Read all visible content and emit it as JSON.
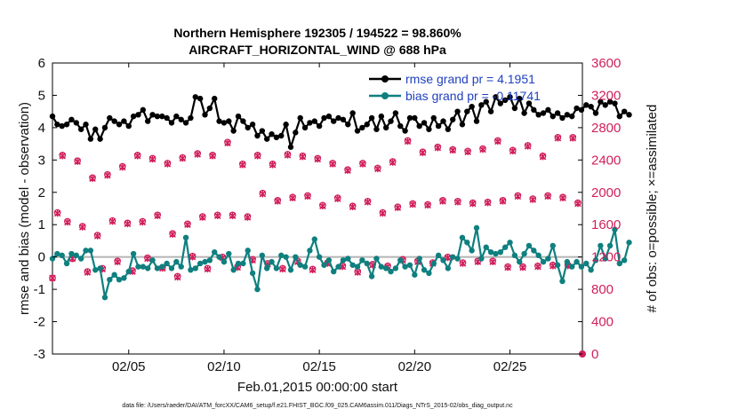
{
  "chart_data": {
    "type": "line",
    "title": "Northern Hemisphere 192305 / 194522 = 98.860%",
    "subtitle": "AIRCRAFT_HORIZONTAL_WIND @ 688 hPa",
    "xlabel": "Feb.01,2015 00:00:00 start",
    "ylabel": "rmse and bias (model - observation)",
    "y2label": "# of obs: o=possible; ×=assimilated",
    "footnote": "data file: /Users/raeder/DAI/ATM_forcXX/CAM6_setup/f.e21.FHIST_BGC.f09_025.CAM6assim.011/Diags_NTrS_2015-02/obs_diag_output.nc",
    "xlim": [
      1,
      28.8
    ],
    "ylim": [
      -3,
      6
    ],
    "y2lim": [
      0,
      3600
    ],
    "xticks": [
      5,
      10,
      15,
      20,
      25
    ],
    "xtick_labels": [
      "02/05",
      "02/10",
      "02/15",
      "02/20",
      "02/25"
    ],
    "yticks": [
      -3,
      -2,
      -1,
      0,
      1,
      2,
      3,
      4,
      5,
      6
    ],
    "y2ticks": [
      0,
      400,
      800,
      1200,
      1600,
      2000,
      2400,
      2800,
      3200,
      3600
    ],
    "x_start": 1.0,
    "x_step": 0.25,
    "series": [
      {
        "name": "rmse",
        "legend": "rmse grand pr = 4.1951",
        "color": "#000000",
        "values": [
          4.35,
          4.1,
          4.05,
          4.1,
          4.25,
          4.15,
          3.95,
          4.1,
          3.65,
          3.95,
          3.65,
          4.0,
          4.3,
          4.2,
          4.1,
          4.2,
          4.05,
          4.35,
          4.4,
          4.55,
          4.2,
          4.4,
          4.35,
          4.35,
          4.3,
          4.15,
          4.35,
          4.25,
          4.15,
          4.3,
          4.95,
          4.9,
          4.4,
          4.6,
          4.9,
          4.2,
          4.15,
          4.2,
          3.9,
          4.35,
          4.2,
          4.0,
          4.1,
          3.75,
          3.9,
          3.65,
          3.8,
          3.7,
          3.75,
          4.1,
          3.4,
          3.85,
          4.3,
          4.0,
          4.15,
          4.2,
          4.05,
          4.3,
          4.35,
          4.2,
          4.3,
          4.25,
          4.1,
          4.45,
          3.9,
          4.0,
          4.1,
          4.3,
          3.95,
          4.35,
          4.0,
          4.2,
          4.45,
          4.05,
          3.9,
          4.3,
          4.3,
          4.05,
          4.15,
          3.95,
          4.3,
          4.05,
          4.2,
          3.95,
          4.25,
          4.5,
          4.1,
          4.5,
          4.65,
          4.2,
          4.7,
          4.8,
          4.5,
          4.95,
          4.75,
          4.85,
          4.95,
          4.6,
          4.9,
          4.45,
          4.75,
          4.55,
          4.4,
          4.45,
          4.55,
          4.35,
          4.45,
          4.3,
          4.4,
          4.35,
          4.6,
          4.55,
          4.7,
          4.65,
          4.45,
          4.8,
          4.7,
          4.8,
          4.75,
          4.35,
          4.5,
          4.4
        ]
      },
      {
        "name": "bias",
        "legend": "bias grand pr = -0.11741",
        "color": "#0f7f7f",
        "values": [
          -0.05,
          0.1,
          0.05,
          -0.2,
          0.1,
          0.05,
          -0.05,
          0.2,
          0.2,
          -0.4,
          -0.35,
          -1.25,
          -0.7,
          -0.55,
          -0.7,
          -0.65,
          -0.45,
          0.1,
          -0.3,
          -0.3,
          -0.35,
          -0.1,
          -0.35,
          -0.3,
          -0.2,
          -0.35,
          -0.15,
          -0.3,
          0.6,
          -0.4,
          -0.35,
          -0.2,
          -0.15,
          -0.1,
          0.15,
          0.0,
          -0.15,
          0.1,
          -0.4,
          -0.2,
          -0.2,
          0.2,
          -0.5,
          -1.0,
          0.05,
          -0.35,
          -0.15,
          -0.35,
          0.05,
          0.0,
          -0.4,
          0.0,
          -0.25,
          -0.3,
          0.2,
          0.55,
          0.0,
          -0.25,
          -0.1,
          -0.45,
          -0.3,
          -0.1,
          -0.05,
          -0.25,
          -0.3,
          -0.1,
          -0.2,
          -0.6,
          -0.05,
          -0.3,
          -0.35,
          -0.45,
          -0.35,
          -0.1,
          -0.3,
          -0.25,
          -0.55,
          -0.05,
          -0.4,
          -0.5,
          -0.2,
          0.05,
          -0.1,
          -0.35,
          0.0,
          -0.05,
          0.6,
          0.45,
          0.2,
          0.9,
          -0.05,
          0.3,
          0.15,
          0.1,
          0.15,
          0.3,
          0.45,
          0.05,
          -0.15,
          0.1,
          0.35,
          0.2,
          0.05,
          -0.15,
          -0.05,
          0.35,
          -0.25,
          -0.75,
          -0.15,
          -0.3,
          -0.15,
          -0.3,
          -0.2,
          -0.4,
          -0.1,
          0.35,
          -0.05,
          0.35,
          0.85,
          -0.2,
          -0.1,
          0.45
        ]
      },
      {
        "name": "obs_possible",
        "color": "#d01f5c",
        "axis": "right",
        "values": [
          940,
          1750,
          2460,
          1640,
          1180,
          2390,
          1580,
          1020,
          2180,
          1470,
          1060,
          2220,
          1650,
          1150,
          2320,
          1620,
          1030,
          2460,
          1640,
          1190,
          2420,
          1720,
          1070,
          2360,
          1490,
          960,
          2430,
          1610,
          1210,
          2480,
          1700,
          1060,
          2460,
          1720,
          1200,
          2620,
          1720,
          1080,
          2350,
          1700,
          1170,
          2460,
          1990,
          1120,
          2350,
          1900,
          1060,
          2470,
          1940,
          1150,
          2450,
          1960,
          1050,
          2420,
          1840,
          1130,
          2360,
          1930,
          1090,
          2280,
          1830,
          1020,
          2360,
          1890,
          1110,
          2300,
          1750,
          1090,
          2380,
          1820,
          1170,
          2640,
          1860,
          1150,
          2500,
          1850,
          1130,
          2560,
          1900,
          1200,
          2530,
          1890,
          1130,
          2510,
          1870,
          1150,
          2540,
          1880,
          1150,
          2640,
          1900,
          1080,
          2520,
          1960,
          1080,
          2580,
          1920,
          1090,
          2450,
          1960,
          1100,
          2680,
          1940,
          1100,
          2680,
          1870
        ]
      },
      {
        "name": "obs_assimilated",
        "color": "#d01f5c",
        "axis": "right",
        "values": [
          940,
          1740,
          2450,
          1630,
          1180,
          2380,
          1570,
          1010,
          2170,
          1460,
          1050,
          2210,
          1640,
          1140,
          2310,
          1610,
          1020,
          2450,
          1630,
          1180,
          2410,
          1710,
          1060,
          2350,
          1480,
          950,
          2420,
          1600,
          1200,
          2470,
          1690,
          1050,
          2450,
          1710,
          1190,
          2610,
          1710,
          1070,
          2340,
          1690,
          1160,
          2450,
          1980,
          1110,
          2340,
          1890,
          1050,
          2460,
          1930,
          1140,
          2440,
          1950,
          1040,
          2410,
          1830,
          1120,
          2350,
          1920,
          1080,
          2270,
          1820,
          1010,
          2350,
          1880,
          1100,
          2290,
          1740,
          1080,
          2370,
          1810,
          1160,
          2630,
          1850,
          1140,
          2490,
          1840,
          1120,
          2550,
          1890,
          1190,
          2520,
          1880,
          1120,
          2500,
          1860,
          1140,
          2530,
          1870,
          1140,
          2630,
          1890,
          1070,
          2510,
          1950,
          1070,
          2570,
          1910,
          1080,
          2440,
          1950,
          1090,
          2670,
          1930,
          1090,
          2670,
          1860
        ]
      }
    ],
    "obs_x_start": 1.0,
    "obs_x_step": 0.2625,
    "grid": false,
    "legend_position": "top-right"
  }
}
